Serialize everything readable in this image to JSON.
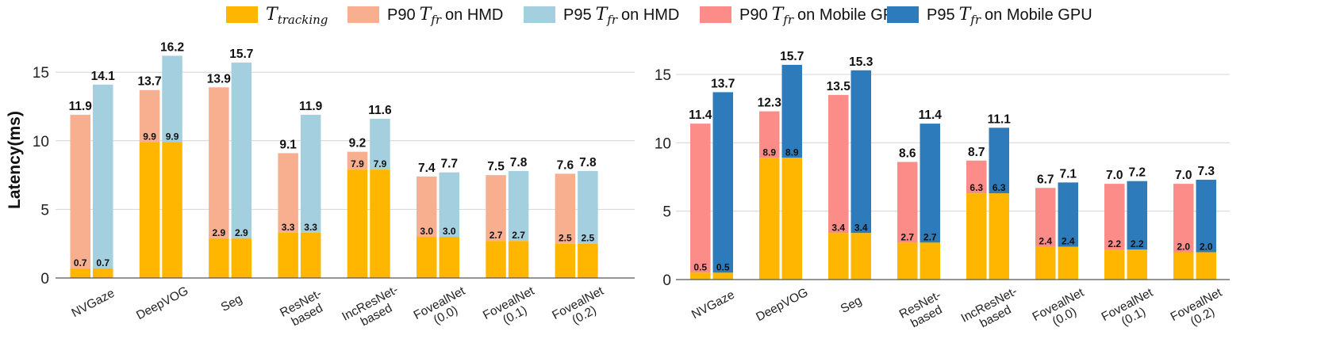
{
  "legend": [
    {
      "id": "tracking",
      "prefix": "",
      "math": "T",
      "sub": "tracking",
      "suffix": "",
      "color": "#FFB600"
    },
    {
      "id": "p90-hmd",
      "prefix": "P90",
      "math": "T",
      "sub": "fr",
      "suffix": "on HMD",
      "color": "#F8AF8F"
    },
    {
      "id": "p95-hmd",
      "prefix": "P95",
      "math": "T",
      "sub": "fr",
      "suffix": "on HMD",
      "color": "#A3CFDE"
    },
    {
      "id": "p90-mobile",
      "prefix": "P90",
      "math": "T",
      "sub": "fr",
      "suffix": "on Mobile GPU",
      "color": "#FC8C87"
    },
    {
      "id": "p95-mobile",
      "prefix": "P95",
      "math": "T",
      "sub": "fr",
      "suffix": "on Mobile GPU",
      "color": "#2E7BBC"
    }
  ],
  "chart_data": [
    {
      "type": "bar",
      "title": "",
      "xlabel": "",
      "ylabel": "Latency(ms)",
      "ylim": [
        0,
        17.5
      ],
      "yticks": [
        0,
        5,
        10,
        15
      ],
      "grid": true,
      "categories": [
        [
          "NVGaze"
        ],
        [
          "DeepVOG"
        ],
        [
          "Seg"
        ],
        [
          "ResNet-",
          "based"
        ],
        [
          "IncResNet-",
          "based"
        ],
        [
          "FovealNet",
          "(0.0)"
        ],
        [
          "FovealNet",
          "(0.1)"
        ],
        [
          "FovealNet",
          "(0.2)"
        ]
      ],
      "tracking": [
        0.7,
        9.9,
        2.9,
        3.3,
        7.9,
        3.0,
        2.7,
        2.5
      ],
      "tracking_labels": [
        "0.7",
        "9.9",
        "2.9",
        "3.3",
        "7.9",
        "3.0",
        "2.7",
        "2.5"
      ],
      "series": [
        {
          "name": "P90 T_fr on HMD",
          "color": "#F8AF8F",
          "values": [
            11.9,
            13.7,
            13.9,
            9.1,
            9.2,
            7.4,
            7.5,
            7.6
          ],
          "labels": [
            "11.9",
            "13.7",
            "13.9",
            "9.1",
            "9.2",
            "7.4",
            "7.5",
            "7.6"
          ]
        },
        {
          "name": "P95 T_fr on HMD",
          "color": "#A3CFDE",
          "values": [
            14.1,
            16.2,
            15.7,
            11.9,
            11.6,
            7.7,
            7.8,
            7.8
          ],
          "labels": [
            "14.1",
            "16.2",
            "15.7",
            "11.9",
            "11.6",
            "7.7",
            "7.8",
            "7.8"
          ]
        }
      ]
    },
    {
      "type": "bar",
      "title": "",
      "xlabel": "",
      "ylabel": "",
      "ylim": [
        0,
        17.5
      ],
      "yticks": [
        0,
        5,
        10,
        15
      ],
      "grid": true,
      "categories": [
        [
          "NVGaze"
        ],
        [
          "DeepVOG"
        ],
        [
          "Seg"
        ],
        [
          "ResNet-",
          "based"
        ],
        [
          "IncResNet-",
          "based"
        ],
        [
          "FovealNet",
          "(0.0)"
        ],
        [
          "FovealNet",
          "(0.1)"
        ],
        [
          "FovealNet",
          "(0.2)"
        ]
      ],
      "tracking": [
        0.5,
        8.9,
        3.4,
        2.7,
        6.3,
        2.4,
        2.2,
        2.0
      ],
      "tracking_labels": [
        "0.5",
        "8.9",
        "3.4",
        "2.7",
        "6.3",
        "2.4",
        "2.2",
        "2.0"
      ],
      "series": [
        {
          "name": "P90 T_fr on Mobile GPU",
          "color": "#FC8C87",
          "values": [
            11.4,
            12.3,
            13.5,
            8.6,
            8.7,
            6.7,
            7.0,
            7.0
          ],
          "labels": [
            "11.4",
            "12.3",
            "13.5",
            "8.6",
            "8.7",
            "6.7",
            "7.0",
            "7.0"
          ]
        },
        {
          "name": "P95 T_fr on Mobile GPU",
          "color": "#2E7BBC",
          "values": [
            13.7,
            15.7,
            15.3,
            11.4,
            11.1,
            7.1,
            7.2,
            7.3
          ],
          "labels": [
            "13.7",
            "15.7",
            "15.3",
            "11.4",
            "11.1",
            "7.1",
            "7.2",
            "7.3"
          ]
        }
      ]
    }
  ]
}
